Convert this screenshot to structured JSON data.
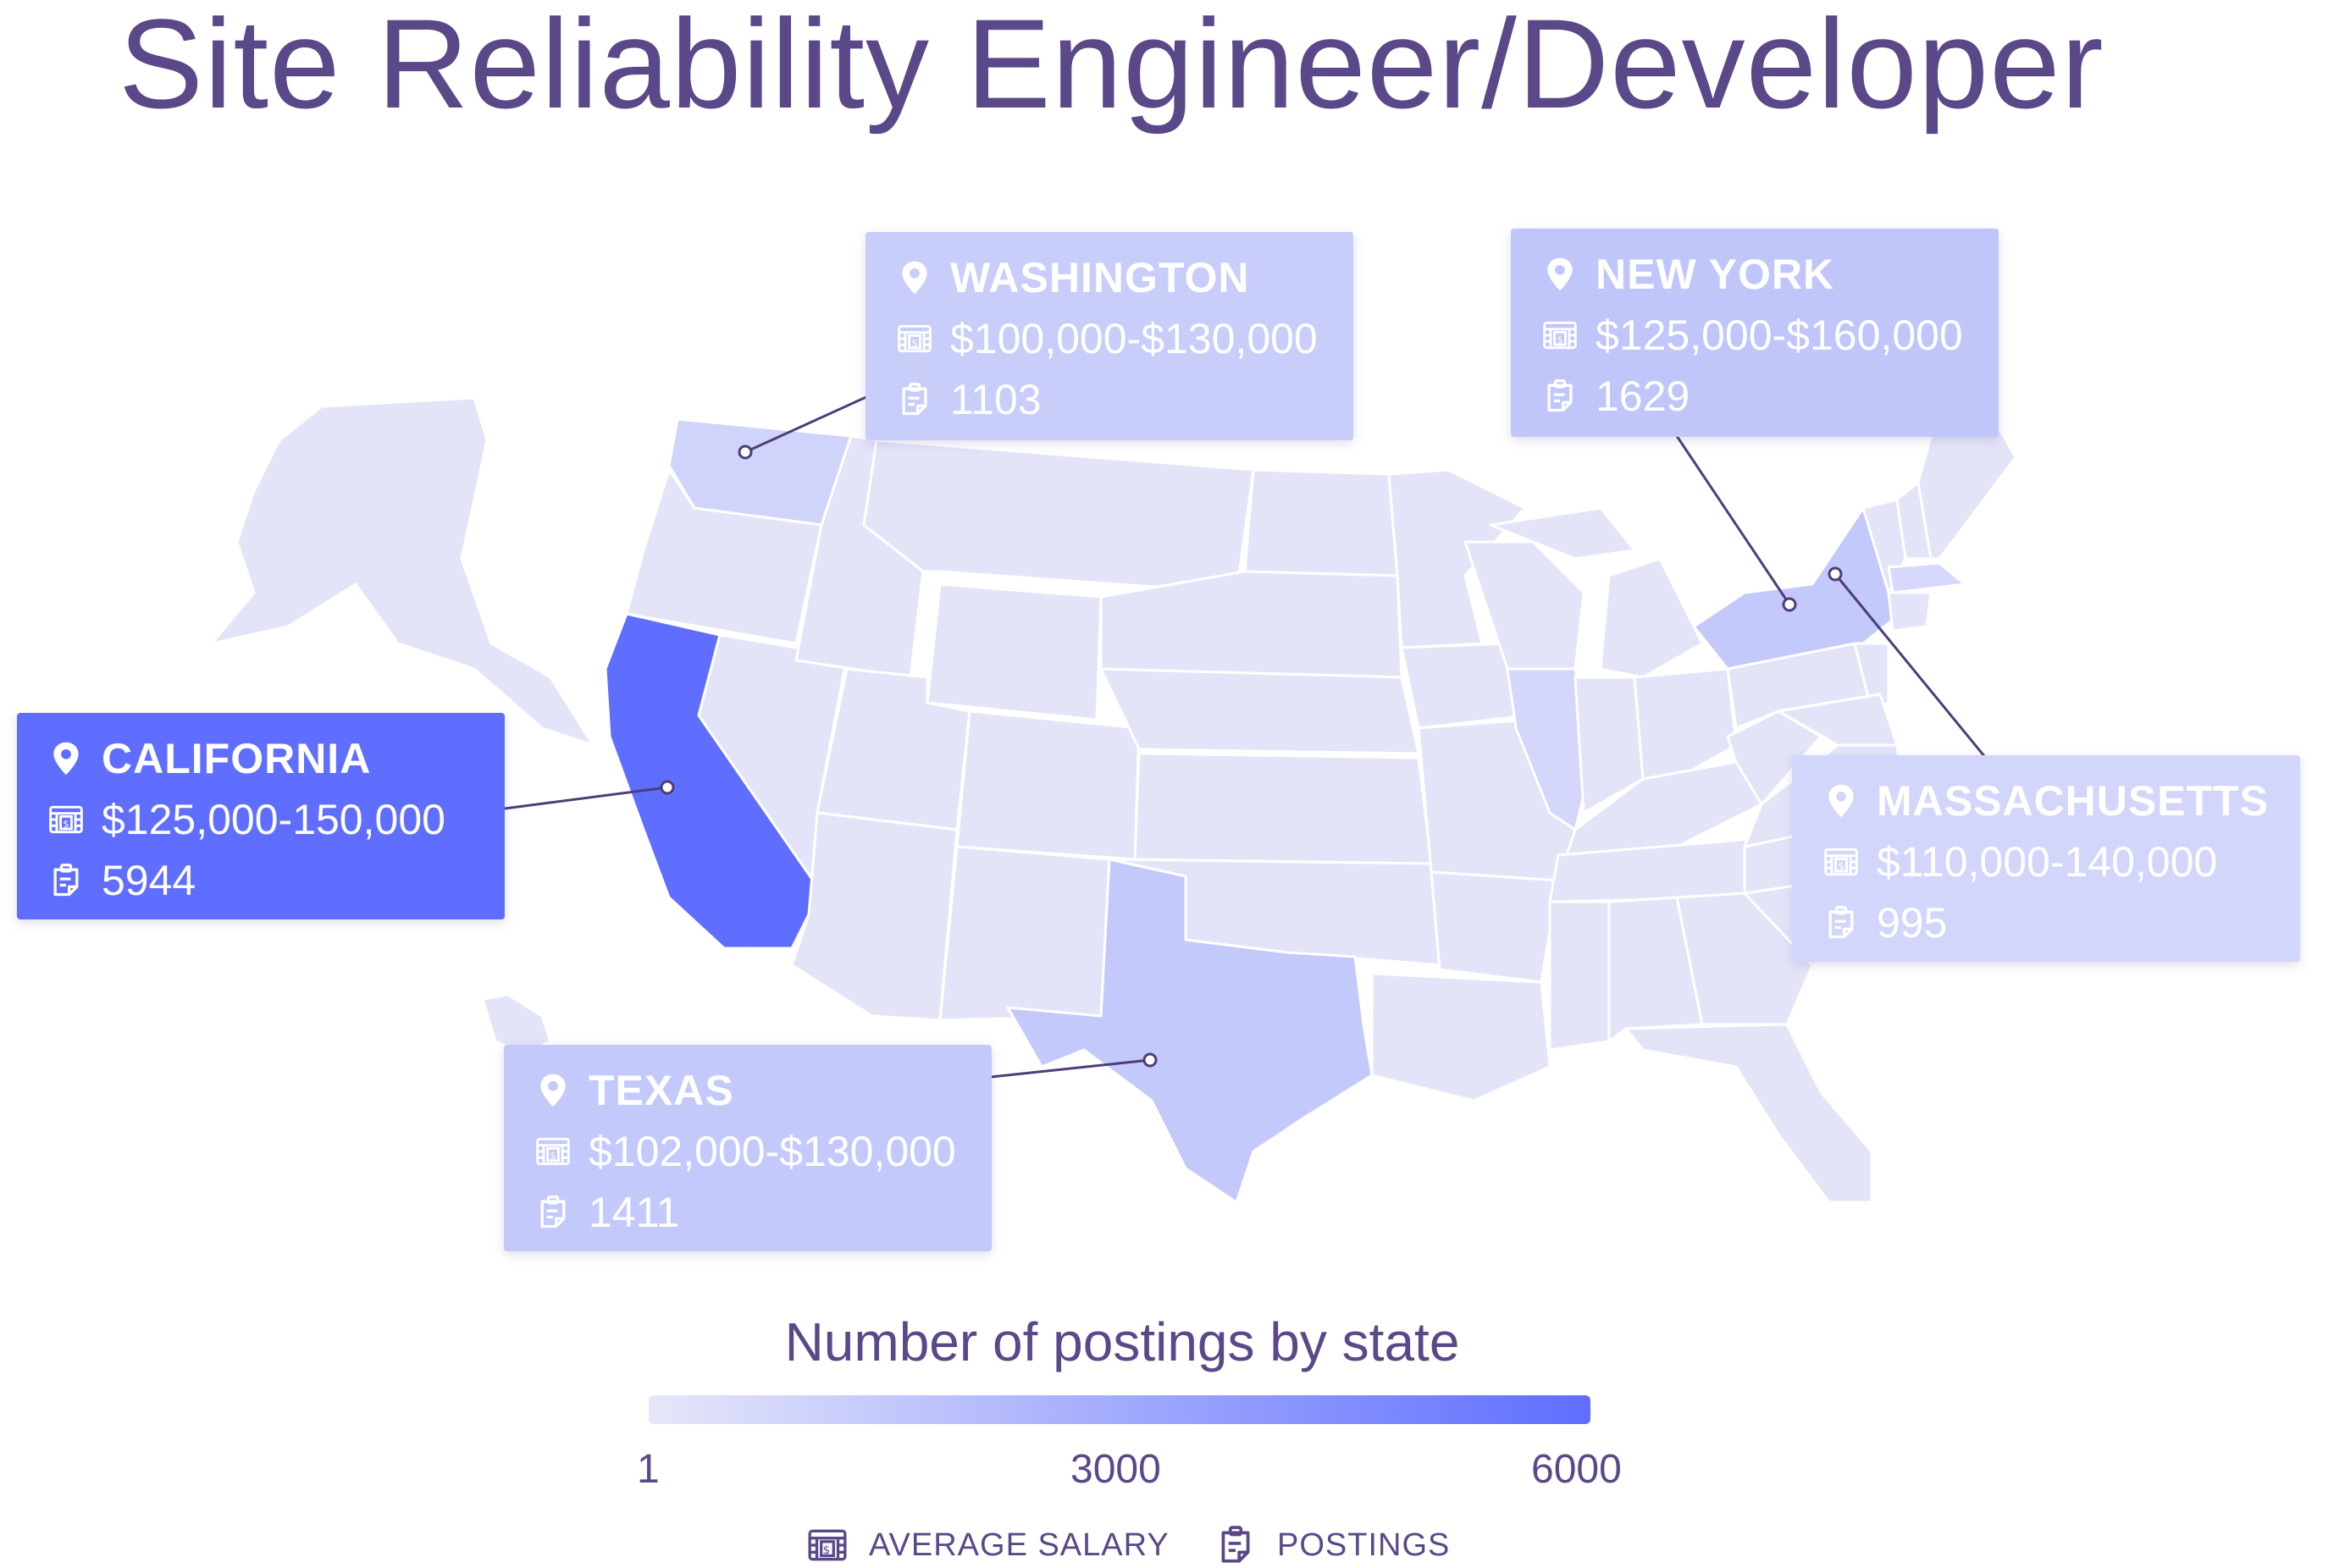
{
  "title": "Site Reliability Engineer/Developer",
  "colors": {
    "title": "#5a4889",
    "base_state": "#e3e4f8",
    "state_border": "#ffffff",
    "california": "#5f6eff",
    "texas": "#c4c9fb",
    "washington": "#d0d4fa",
    "new_york": "#c4c9fb",
    "massachusetts": "#d6d9fb",
    "illinois": "#d4d7fa",
    "callout_line": "#4d3d79",
    "gradient_start": "#e6e7fa",
    "gradient_end": "#5f6eff"
  },
  "states": [
    {
      "key": "washington",
      "name": "WASHINGTON",
      "salary": "$100,000-$130,000",
      "postings": "1103",
      "color": "#c8cdfa"
    },
    {
      "key": "new_york",
      "name": "NEW YORK",
      "salary": "$125,000-$160,000",
      "postings": "1629",
      "color": "#c0c6fa"
    },
    {
      "key": "california",
      "name": "CALIFORNIA",
      "salary": "$125,000-150,000",
      "postings": "5944",
      "color": "#5f6eff"
    },
    {
      "key": "massachusetts",
      "name": "MASSACHUSETTS",
      "salary": "$110,000-140,000",
      "postings": "995",
      "color": "#d3d6fb"
    },
    {
      "key": "texas",
      "name": "TEXAS",
      "salary": "$102,000-$130,000",
      "postings": "1411",
      "color": "#c4c9fb"
    }
  ],
  "legend": {
    "title": "Number of postings by state",
    "ticks": [
      "1",
      "3000",
      "6000"
    ],
    "range": [
      1,
      6000
    ],
    "keys": {
      "salary": {
        "icon": "salary-icon",
        "label": "AVERAGE SALARY"
      },
      "postings": {
        "icon": "postings-icon",
        "label": "POSTINGS"
      }
    }
  },
  "icons": {
    "location": "location-pin-icon",
    "salary": "salary-icon",
    "postings": "postings-icon"
  }
}
